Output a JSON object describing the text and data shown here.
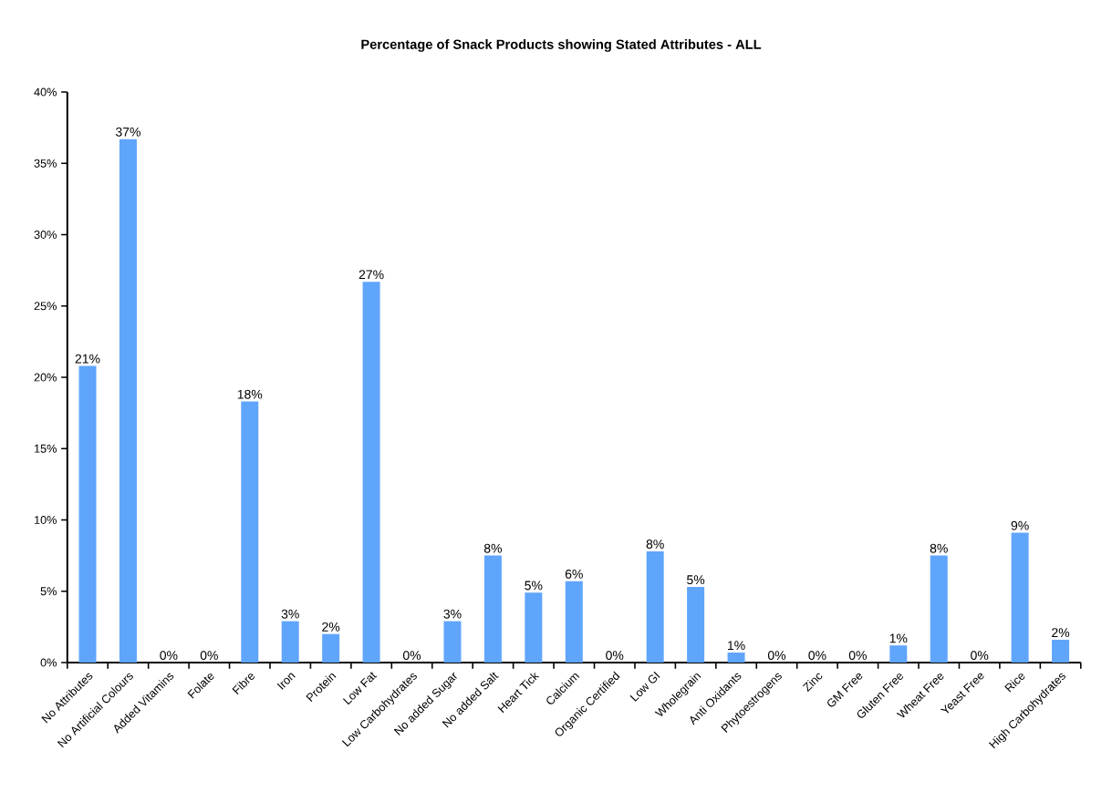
{
  "chart_data": {
    "type": "bar",
    "title": "Percentage of Snack Products showing Stated Attributes - ALL",
    "categories": [
      "No Attributes",
      "No Artificial Colours",
      "Added Vitamins",
      "Folate",
      "Fibre",
      "Iron",
      "Protein",
      "Low Fat",
      "Low Carbohydrates",
      "No added Sugar",
      "No added Salt",
      "Heart Tick",
      "Calcium",
      "Organic Certified",
      "Low GI",
      "Wholegrain",
      "Anti Oxidants",
      "Phytoestrogens",
      "Zinc",
      "GM Free",
      "Gluten Free",
      "Wheat Free",
      "Yeast Free",
      "Rice",
      "High Carbohydrates"
    ],
    "values": [
      20.8,
      36.7,
      0,
      0,
      18.3,
      2.9,
      2.0,
      26.7,
      0,
      2.9,
      7.5,
      4.9,
      5.7,
      0,
      7.8,
      5.3,
      0.7,
      0,
      0,
      0,
      1.2,
      7.5,
      0,
      9.1,
      1.6
    ],
    "value_labels": [
      "21%",
      "37%",
      "0%",
      "0%",
      "18%",
      "3%",
      "2%",
      "27%",
      "0%",
      "3%",
      "8%",
      "5%",
      "6%",
      "0%",
      "8%",
      "5%",
      "1%",
      "0%",
      "0%",
      "0%",
      "1%",
      "8%",
      "0%",
      "9%",
      "2%"
    ],
    "color": "#60a5fc",
    "ylim": [
      0,
      40
    ],
    "yticks": [
      {
        "value": 0,
        "label": "0%"
      },
      {
        "value": 5,
        "label": "5%"
      },
      {
        "value": 10,
        "label": "10%"
      },
      {
        "value": 15,
        "label": "15%"
      },
      {
        "value": 20,
        "label": "20%"
      },
      {
        "value": 25,
        "label": "25%"
      },
      {
        "value": 30,
        "label": "30%"
      },
      {
        "value": 35,
        "label": "35%"
      },
      {
        "value": 40,
        "label": "40%"
      }
    ]
  }
}
